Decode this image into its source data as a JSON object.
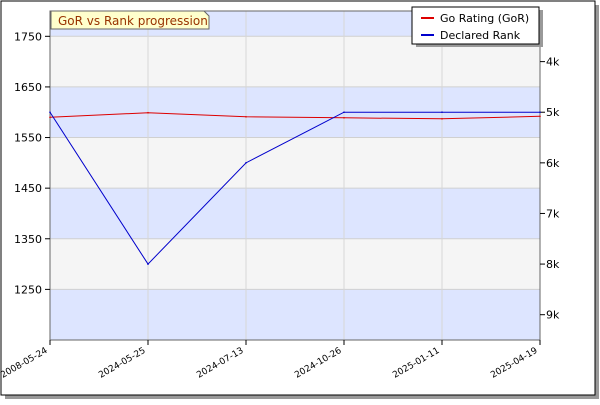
{
  "chart_data": {
    "type": "line",
    "title": "GoR vs Rank progression",
    "x": [
      "2008-05-24",
      "2024-05-25",
      "2024-07-13",
      "2024-10-26",
      "2025-01-11",
      "2025-04-19"
    ],
    "y_left": {
      "ticks": [
        1250,
        1350,
        1450,
        1550,
        1650,
        1750
      ],
      "range": [
        1150,
        1800
      ]
    },
    "y_right": {
      "unit": "kyu",
      "ticks": [
        {
          "label": "4k",
          "value": 4
        },
        {
          "label": "5k",
          "value": 5
        },
        {
          "label": "6k",
          "value": 6
        },
        {
          "label": "7k",
          "value": 7
        },
        {
          "label": "8k",
          "value": 8
        },
        {
          "label": "9k",
          "value": 9
        }
      ],
      "range": [
        3,
        9.5
      ],
      "inverted": true
    },
    "series": [
      {
        "name": "Go Rating (GoR)",
        "axis": "left",
        "color": "#dd0000",
        "values": [
          1590,
          1599,
          1591,
          1589,
          1587,
          1592
        ]
      },
      {
        "name": "Declared Rank",
        "axis": "right",
        "color": "#0000cc",
        "values": [
          5,
          8,
          6,
          5,
          5,
          5
        ]
      }
    ],
    "grid": true,
    "legend": "top-right",
    "band_colors": [
      "#dde5ff",
      "#f5f5f5"
    ]
  }
}
